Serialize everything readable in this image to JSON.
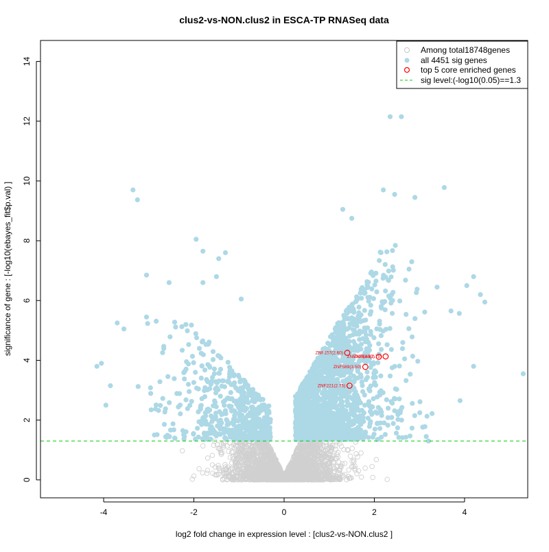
{
  "chart_data": {
    "type": "scatter",
    "title": "clus2-vs-NON.clus2 in ESCA-TP RNASeq data",
    "xlabel": "log2 fold change in expression level : [clus2-vs-NON.clus2 ]",
    "ylabel": "significance of gene : [-log10(ebayes_fit$p.val) ]",
    "xlim": [
      -5.4,
      5.4
    ],
    "ylim": [
      -0.6,
      14.7
    ],
    "x_ticks": [
      -4,
      -2,
      0,
      2,
      4
    ],
    "y_ticks": [
      0,
      2,
      4,
      6,
      8,
      10,
      12,
      14
    ],
    "sig_level": 1.3,
    "colors": {
      "all_genes": "#d0d0d0",
      "sig_genes": "#add8e6",
      "core_genes": "#ff0000",
      "sig_line": "#00cc00"
    },
    "legend": {
      "position": "top-right",
      "entries": [
        "Among total18748genes",
        "all 4451 sig genes",
        "top 5 core enriched genes",
        "sig level:(-log10(0.05)==1.3"
      ]
    },
    "core_genes": [
      {
        "label": "ZNF157(2.60)",
        "x": 1.4,
        "y": 4.25
      },
      {
        "label": "ZNF300(2.67)",
        "x": 2.1,
        "y": 4.12
      },
      {
        "label": "ZNF540(2.71)",
        "x": 2.25,
        "y": 4.13
      },
      {
        "label": "ZNF589(3.50)",
        "x": 1.8,
        "y": 3.78
      },
      {
        "label": "ZNF221(2.75)",
        "x": 1.45,
        "y": 3.15
      }
    ],
    "notable_sig_points": [
      {
        "x": -3.35,
        "y": 9.7
      },
      {
        "x": -3.25,
        "y": 9.37
      },
      {
        "x": -1.95,
        "y": 8.05
      },
      {
        "x": -1.8,
        "y": 7.65
      },
      {
        "x": -1.3,
        "y": 7.6
      },
      {
        "x": -1.45,
        "y": 7.4
      },
      {
        "x": -3.05,
        "y": 6.85
      },
      {
        "x": -2.55,
        "y": 6.6
      },
      {
        "x": -1.8,
        "y": 6.6
      },
      {
        "x": -1.5,
        "y": 6.8
      },
      {
        "x": -0.95,
        "y": 6.05
      },
      {
        "x": -4.15,
        "y": 3.8
      },
      {
        "x": -4.05,
        "y": 3.9
      },
      {
        "x": -3.85,
        "y": 3.15
      },
      {
        "x": -3.95,
        "y": 2.5
      },
      {
        "x": -3.7,
        "y": 5.25
      },
      {
        "x": -3.55,
        "y": 5.05
      },
      {
        "x": -3.05,
        "y": 5.45
      },
      {
        "x": 2.35,
        "y": 12.15
      },
      {
        "x": 2.6,
        "y": 12.15
      },
      {
        "x": 3.55,
        "y": 9.78
      },
      {
        "x": 2.2,
        "y": 9.7
      },
      {
        "x": 2.45,
        "y": 9.55
      },
      {
        "x": 2.9,
        "y": 9.45
      },
      {
        "x": 1.3,
        "y": 9.05
      },
      {
        "x": 1.5,
        "y": 8.75
      },
      {
        "x": 4.2,
        "y": 6.8
      },
      {
        "x": 4.05,
        "y": 6.5
      },
      {
        "x": 4.35,
        "y": 6.2
      },
      {
        "x": 4.45,
        "y": 5.95
      },
      {
        "x": 3.7,
        "y": 5.65
      },
      {
        "x": 4.2,
        "y": 3.8
      },
      {
        "x": 5.3,
        "y": 3.55
      },
      {
        "x": 3.9,
        "y": 2.65
      },
      {
        "x": 3.15,
        "y": 1.45
      },
      {
        "x": 3.2,
        "y": 1.3
      }
    ],
    "sig_cloud_counts": {
      "left_arm": 550,
      "right_arm": 1900
    },
    "nonsig_cloud_count": 2600
  }
}
